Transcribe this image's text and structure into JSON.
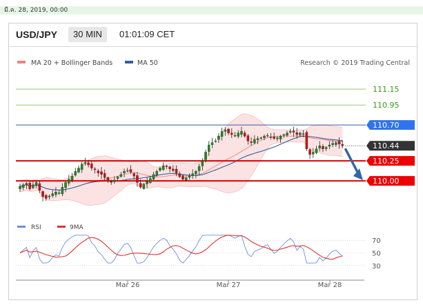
{
  "top_date": "มี.ค. 28, 2019, 00:00",
  "header": {
    "symbol": "USD/JPY",
    "timeframe": "30 MIN",
    "time": "01:01:09 CET"
  },
  "legend": {
    "bb_label": "MA 20 + Bollinger Bands",
    "ma50_label": "MA 50",
    "research": "Research © 2019 Trading Central"
  },
  "colors": {
    "bb_fill": "#fbdada",
    "bb_line": "#f08080",
    "ma50": "#2f5f9e",
    "support": "#dd0000",
    "resistance_blue": "#2f5f9e",
    "target_green": "#9bc86b",
    "green_label": "#3a9a1a",
    "up_candle": "#1f8a1f",
    "down_candle": "#d01010",
    "rsi": "#6a8fdc",
    "ma9": "#e03030",
    "arrow": "#3366aa"
  },
  "chart_data": [
    {
      "type": "candlestick",
      "title": "USD/JPY",
      "x_ticks": [
        "Mar 26",
        "Mar 27",
        "Mar 28"
      ],
      "ylim": [
        109.62,
        111.35
      ],
      "levels": [
        {
          "value": 111.15,
          "label": "111.15",
          "kind": "target"
        },
        {
          "value": 110.95,
          "label": "110.95",
          "kind": "target"
        },
        {
          "value": 110.7,
          "label": "110.70",
          "kind": "resistance"
        },
        {
          "value": 110.44,
          "label": "110.44",
          "kind": "current"
        },
        {
          "value": 110.25,
          "label": "110.25",
          "kind": "support"
        },
        {
          "value": 110.0,
          "label": "110.00",
          "kind": "support"
        }
      ],
      "close_approx": [
        109.93,
        109.95,
        109.97,
        109.9,
        109.95,
        109.98,
        109.88,
        109.8,
        109.78,
        109.81,
        109.84,
        109.86,
        109.85,
        109.92,
        109.98,
        110.02,
        110.06,
        110.12,
        110.16,
        110.21,
        110.23,
        110.2,
        110.16,
        110.14,
        110.1,
        110.08,
        110.04,
        110.0,
        109.98,
        110.01,
        110.05,
        110.08,
        110.12,
        110.13,
        110.11,
        110.06,
        109.98,
        109.92,
        109.96,
        109.99,
        110.03,
        110.08,
        110.12,
        110.16,
        110.19,
        110.18,
        110.15,
        110.13,
        110.1,
        110.05,
        110.02,
        110.04,
        110.06,
        110.09,
        110.12,
        110.18,
        110.25,
        110.36,
        110.45,
        110.48,
        110.5,
        110.56,
        110.62,
        110.64,
        110.6,
        110.58,
        110.57,
        110.6,
        110.62,
        110.56,
        110.5,
        110.48,
        110.52,
        110.53,
        110.54,
        110.56,
        110.57,
        110.55,
        110.53,
        110.54,
        110.56,
        110.58,
        110.6,
        110.62,
        110.61,
        110.58,
        110.6,
        110.59,
        110.4,
        110.33,
        110.36,
        110.4,
        110.44,
        110.4,
        110.42,
        110.45,
        110.47,
        110.48,
        110.46,
        110.44
      ]
    },
    {
      "type": "line",
      "title": "RSI",
      "series": [
        {
          "name": "RSI"
        },
        {
          "name": "9MA"
        }
      ],
      "y_ticks": [
        70,
        50,
        30
      ],
      "ylim": [
        20,
        80
      ]
    }
  ]
}
